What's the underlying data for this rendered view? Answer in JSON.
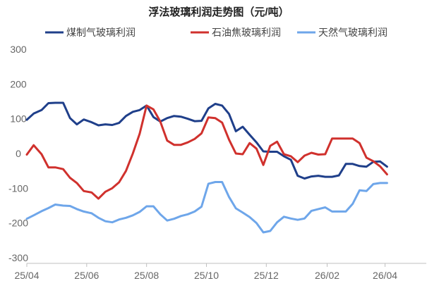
{
  "chart_data": {
    "type": "line",
    "title": "浮法玻璃利润走势图（元/吨）",
    "xlabel": "",
    "ylabel": "",
    "ylim": [
      -300,
      300
    ],
    "yticks": [
      300,
      200,
      100,
      0,
      -100,
      -200,
      -300
    ],
    "x_range": [
      "2025-04-01",
      "2026-04-20"
    ],
    "x_ticks": [
      {
        "label": "25/04",
        "date": "2025-04-01"
      },
      {
        "label": "25/06",
        "date": "2025-06-01"
      },
      {
        "label": "25/08",
        "date": "2025-08-01"
      },
      {
        "label": "25/10",
        "date": "2025-10-01"
      },
      {
        "label": "25/12",
        "date": "2025-12-01"
      },
      {
        "label": "26/02",
        "date": "2026-02-01"
      },
      {
        "label": "26/04",
        "date": "2026-04-01"
      }
    ],
    "legend_position": "top",
    "grid": false,
    "series": [
      {
        "name": "煤制气玻璃利润",
        "color": "#1f3f8a",
        "points": [
          [
            "2025-04-01",
            97
          ],
          [
            "2025-04-08",
            115
          ],
          [
            "2025-04-16",
            125
          ],
          [
            "2025-04-23",
            145
          ],
          [
            "2025-04-30",
            146
          ],
          [
            "2025-05-08",
            146
          ],
          [
            "2025-05-15",
            102
          ],
          [
            "2025-05-22",
            84
          ],
          [
            "2025-05-29",
            98
          ],
          [
            "2025-06-06",
            90
          ],
          [
            "2025-06-13",
            81
          ],
          [
            "2025-06-20",
            84
          ],
          [
            "2025-06-27",
            82
          ],
          [
            "2025-07-04",
            88
          ],
          [
            "2025-07-11",
            108
          ],
          [
            "2025-07-18",
            120
          ],
          [
            "2025-07-25",
            125
          ],
          [
            "2025-08-01",
            138
          ],
          [
            "2025-08-08",
            105
          ],
          [
            "2025-08-15",
            92
          ],
          [
            "2025-08-22",
            102
          ],
          [
            "2025-08-29",
            108
          ],
          [
            "2025-09-05",
            106
          ],
          [
            "2025-09-12",
            100
          ],
          [
            "2025-09-19",
            93
          ],
          [
            "2025-09-26",
            94
          ],
          [
            "2025-10-03",
            130
          ],
          [
            "2025-10-10",
            143
          ],
          [
            "2025-10-17",
            138
          ],
          [
            "2025-10-24",
            114
          ],
          [
            "2025-10-31",
            64
          ],
          [
            "2025-11-07",
            77
          ],
          [
            "2025-11-14",
            54
          ],
          [
            "2025-11-21",
            32
          ],
          [
            "2025-11-28",
            6
          ],
          [
            "2025-12-05",
            5
          ],
          [
            "2025-12-12",
            5
          ],
          [
            "2025-12-19",
            -8
          ],
          [
            "2025-12-26",
            -18
          ],
          [
            "2026-01-02",
            -64
          ],
          [
            "2026-01-09",
            -72
          ],
          [
            "2026-01-16",
            -66
          ],
          [
            "2026-01-23",
            -64
          ],
          [
            "2026-01-30",
            -67
          ],
          [
            "2026-02-06",
            -67
          ],
          [
            "2026-02-13",
            -63
          ],
          [
            "2026-02-20",
            -30
          ],
          [
            "2026-02-27",
            -30
          ],
          [
            "2026-03-06",
            -36
          ],
          [
            "2026-03-13",
            -38
          ],
          [
            "2026-03-20",
            -24
          ],
          [
            "2026-03-27",
            -23
          ],
          [
            "2026-04-03",
            -38
          ]
        ]
      },
      {
        "name": "石油焦玻璃利润",
        "color": "#d0312d",
        "points": [
          [
            "2025-04-01",
            -3
          ],
          [
            "2025-04-08",
            24
          ],
          [
            "2025-04-16",
            -2
          ],
          [
            "2025-04-23",
            -40
          ],
          [
            "2025-04-30",
            -40
          ],
          [
            "2025-05-08",
            -45
          ],
          [
            "2025-05-15",
            -70
          ],
          [
            "2025-05-22",
            -85
          ],
          [
            "2025-05-29",
            -108
          ],
          [
            "2025-06-06",
            -112
          ],
          [
            "2025-06-13",
            -130
          ],
          [
            "2025-06-20",
            -110
          ],
          [
            "2025-06-27",
            -100
          ],
          [
            "2025-07-04",
            -83
          ],
          [
            "2025-07-11",
            -50
          ],
          [
            "2025-07-18",
            0
          ],
          [
            "2025-07-25",
            57
          ],
          [
            "2025-08-01",
            138
          ],
          [
            "2025-08-08",
            127
          ],
          [
            "2025-08-15",
            92
          ],
          [
            "2025-08-22",
            37
          ],
          [
            "2025-08-29",
            25
          ],
          [
            "2025-09-05",
            25
          ],
          [
            "2025-09-12",
            32
          ],
          [
            "2025-09-19",
            42
          ],
          [
            "2025-09-26",
            58
          ],
          [
            "2025-10-03",
            104
          ],
          [
            "2025-10-10",
            102
          ],
          [
            "2025-10-17",
            89
          ],
          [
            "2025-10-24",
            40
          ],
          [
            "2025-10-31",
            0
          ],
          [
            "2025-11-07",
            -2
          ],
          [
            "2025-11-14",
            30
          ],
          [
            "2025-11-21",
            14
          ],
          [
            "2025-11-28",
            -33
          ],
          [
            "2025-12-05",
            22
          ],
          [
            "2025-12-12",
            34
          ],
          [
            "2025-12-19",
            -2
          ],
          [
            "2025-12-26",
            -8
          ],
          [
            "2026-01-02",
            -25
          ],
          [
            "2026-01-09",
            -6
          ],
          [
            "2026-01-16",
            2
          ],
          [
            "2026-01-23",
            -3
          ],
          [
            "2026-01-30",
            -2
          ],
          [
            "2026-02-06",
            43
          ],
          [
            "2026-02-13",
            43
          ],
          [
            "2026-02-20",
            43
          ],
          [
            "2026-02-27",
            43
          ],
          [
            "2026-03-06",
            30
          ],
          [
            "2026-03-13",
            -12
          ],
          [
            "2026-03-20",
            -22
          ],
          [
            "2026-03-27",
            -37
          ],
          [
            "2026-04-03",
            -60
          ]
        ]
      },
      {
        "name": "天然气玻璃利润",
        "color": "#6ea6ea",
        "points": [
          [
            "2025-04-01",
            -188
          ],
          [
            "2025-04-08",
            -178
          ],
          [
            "2025-04-16",
            -166
          ],
          [
            "2025-04-23",
            -157
          ],
          [
            "2025-04-30",
            -147
          ],
          [
            "2025-05-08",
            -150
          ],
          [
            "2025-05-15",
            -151
          ],
          [
            "2025-05-22",
            -160
          ],
          [
            "2025-05-29",
            -167
          ],
          [
            "2025-06-06",
            -172
          ],
          [
            "2025-06-13",
            -185
          ],
          [
            "2025-06-20",
            -195
          ],
          [
            "2025-06-27",
            -198
          ],
          [
            "2025-07-04",
            -190
          ],
          [
            "2025-07-11",
            -185
          ],
          [
            "2025-07-18",
            -178
          ],
          [
            "2025-07-25",
            -168
          ],
          [
            "2025-08-01",
            -152
          ],
          [
            "2025-08-08",
            -152
          ],
          [
            "2025-08-15",
            -175
          ],
          [
            "2025-08-22",
            -193
          ],
          [
            "2025-08-29",
            -188
          ],
          [
            "2025-09-05",
            -180
          ],
          [
            "2025-09-12",
            -175
          ],
          [
            "2025-09-19",
            -167
          ],
          [
            "2025-09-26",
            -153
          ],
          [
            "2025-10-03",
            -87
          ],
          [
            "2025-10-10",
            -82
          ],
          [
            "2025-10-17",
            -82
          ],
          [
            "2025-10-24",
            -125
          ],
          [
            "2025-10-31",
            -158
          ],
          [
            "2025-11-07",
            -170
          ],
          [
            "2025-11-14",
            -183
          ],
          [
            "2025-11-21",
            -200
          ],
          [
            "2025-11-28",
            -227
          ],
          [
            "2025-12-05",
            -223
          ],
          [
            "2025-12-12",
            -198
          ],
          [
            "2025-12-19",
            -182
          ],
          [
            "2025-12-26",
            -187
          ],
          [
            "2026-01-02",
            -191
          ],
          [
            "2026-01-09",
            -187
          ],
          [
            "2026-01-16",
            -165
          ],
          [
            "2026-01-23",
            -160
          ],
          [
            "2026-01-30",
            -155
          ],
          [
            "2026-02-06",
            -167
          ],
          [
            "2026-02-13",
            -167
          ],
          [
            "2026-02-20",
            -167
          ],
          [
            "2026-02-27",
            -145
          ],
          [
            "2026-03-06",
            -106
          ],
          [
            "2026-03-13",
            -108
          ],
          [
            "2026-03-20",
            -88
          ],
          [
            "2026-03-27",
            -85
          ],
          [
            "2026-04-03",
            -85
          ]
        ]
      }
    ]
  }
}
